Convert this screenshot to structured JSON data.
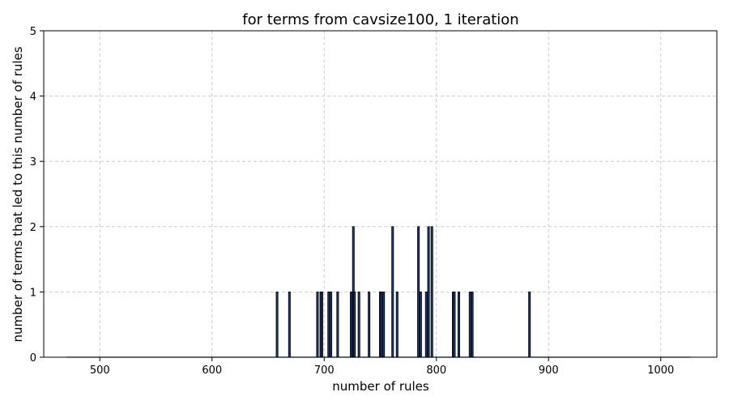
{
  "chart_data": {
    "type": "bar",
    "title": "for terms from cavsize100, 1 iteration",
    "xlabel": "number of rules",
    "ylabel": "number of terms that led to this number of rules",
    "xlim": [
      450,
      1050
    ],
    "ylim": [
      0,
      5
    ],
    "xticks": [
      500,
      600,
      700,
      800,
      900,
      1000
    ],
    "yticks": [
      0,
      1,
      2,
      3,
      4,
      5
    ],
    "grid": true,
    "grid_style": "dashed",
    "bar_color": "#000000",
    "bar_fill": "#1f3b73",
    "x": [
      658,
      669,
      694,
      697,
      698,
      704,
      706,
      712,
      724,
      726,
      727,
      731,
      740,
      750,
      751,
      753,
      761,
      765,
      784,
      786,
      791,
      793,
      796,
      815,
      816,
      820,
      830,
      832,
      883
    ],
    "values": [
      1,
      1,
      1,
      1,
      1,
      1,
      1,
      1,
      1,
      2,
      1,
      1,
      1,
      1,
      1,
      1,
      2,
      1,
      2,
      1,
      1,
      2,
      2,
      1,
      1,
      1,
      1,
      1,
      1
    ]
  }
}
